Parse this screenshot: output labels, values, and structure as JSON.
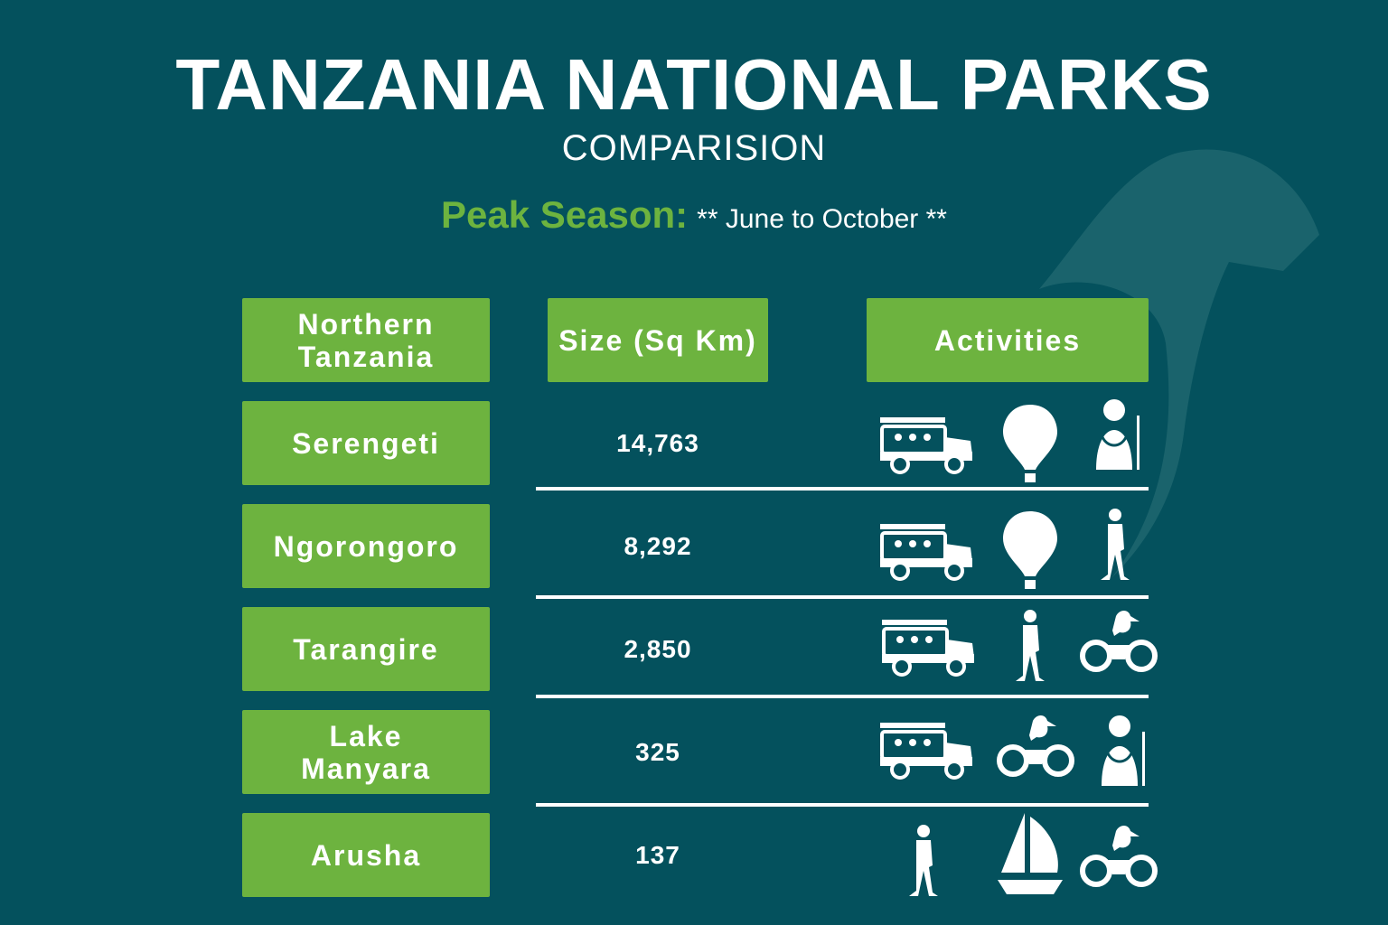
{
  "header": {
    "title": "TANZANIA NATIONAL PARKS",
    "subtitle": "COMPARISION"
  },
  "peak_season": {
    "label": "Peak Season:",
    "value": "** June to October **"
  },
  "table": {
    "headers": [
      "Northern\nTanzania",
      "Size (Sq Km)",
      "Activities"
    ],
    "rows": [
      [
        "Serengeti",
        "14,763"
      ],
      [
        "Ngorongoro",
        "8,292"
      ],
      [
        "Tarangire",
        "2,850"
      ],
      [
        "Lake\nManyara",
        "325"
      ],
      [
        "Arusha",
        "137"
      ]
    ]
  }
}
